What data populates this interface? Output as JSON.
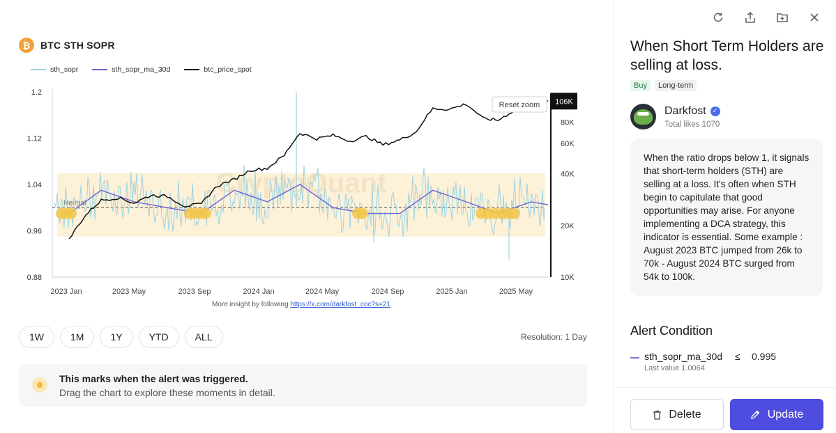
{
  "chart_header": {
    "icon": "bitcoin-icon",
    "title": "BTC STH SOPR"
  },
  "legend": [
    {
      "name": "sth_sopr",
      "color": "#9fd3e0"
    },
    {
      "name": "sth_sopr_ma_30d",
      "color": "#6c63d8"
    },
    {
      "name": "btc_price_spot",
      "color": "#111111"
    }
  ],
  "chart_data": {
    "type": "line",
    "x_ticks": [
      "2023 Jan",
      "2023 May",
      "2023 Sep",
      "2024 Jan",
      "2024 May",
      "2024 Sep",
      "2025 Jan",
      "2025 May"
    ],
    "left_axis": {
      "ticks": [
        "1.2",
        "1.12",
        "1.04",
        "0.96",
        "0.88"
      ],
      "range": [
        0.88,
        1.2
      ]
    },
    "right_axis": {
      "ticks": [
        "106K",
        "80K",
        "60K",
        "40K",
        "20K",
        "10K"
      ],
      "scale": "log"
    },
    "neutral_label": "Neutral",
    "neutral_value": 1.0,
    "band_range": [
      0.95,
      1.06
    ],
    "reset_label": "Reset zoom",
    "watermark": "CryptoQuant",
    "current_price_label": "106K",
    "series": [
      {
        "name": "btc_price_spot",
        "x": [
          "2023-01",
          "2023-02",
          "2023-03",
          "2023-04",
          "2023-05",
          "2023-06",
          "2023-07",
          "2023-08",
          "2023-09",
          "2023-10",
          "2023-11",
          "2023-12",
          "2024-01",
          "2024-02",
          "2024-03",
          "2024-04",
          "2024-05",
          "2024-06",
          "2024-07",
          "2024-08",
          "2024-09",
          "2024-10",
          "2024-11",
          "2024-12",
          "2025-01",
          "2025-02",
          "2025-03",
          "2025-04",
          "2025-05",
          "2025-06"
        ],
        "values": [
          16500,
          23000,
          28000,
          29000,
          27000,
          30000,
          29500,
          26000,
          26500,
          34000,
          37000,
          42000,
          43000,
          51000,
          69000,
          64000,
          67000,
          62000,
          66000,
          59000,
          63000,
          70000,
          96000,
          95000,
          102000,
          84000,
          82000,
          94000,
          104000,
          106000
        ]
      },
      {
        "name": "sth_sopr_ma_30d",
        "x": [
          "2023-01",
          "2023-03",
          "2023-05",
          "2023-07",
          "2023-09",
          "2023-11",
          "2024-01",
          "2024-03",
          "2024-05",
          "2024-07",
          "2024-09",
          "2024-11",
          "2025-01",
          "2025-03",
          "2025-05",
          "2025-06"
        ],
        "values": [
          0.99,
          1.03,
          1.01,
          1.0,
          0.99,
          1.03,
          1.01,
          1.04,
          1.0,
          0.99,
          0.99,
          1.03,
          1.01,
          0.99,
          1.01,
          1.005
        ]
      }
    ],
    "footer_text": "More insight by following",
    "footer_link": "https://x.com/darkfost_coc?s=21"
  },
  "time_buttons": [
    "1W",
    "1M",
    "1Y",
    "YTD",
    "ALL"
  ],
  "resolution": "Resolution: 1 Day",
  "notice": {
    "title": "This marks when the alert was triggered.",
    "subtitle": "Drag the chart to explore these moments in detail."
  },
  "top_icons": [
    "refresh-icon",
    "share-icon",
    "add-folder-icon",
    "close-icon"
  ],
  "alert": {
    "title": "When Short Term Holders are selling at loss.",
    "tags": [
      "Buy",
      "Long-term"
    ]
  },
  "author": {
    "name": "Darkfost",
    "likes": "Total likes 1070"
  },
  "description": "When the ratio drops below 1, it signals that short-term holders (STH) are selling at a loss. It's often when STH begin to capitulate that good opportunities may arise. For anyone implementing a DCA strategy, this indicator is essential. Some example : August 2023 BTC jumped from 26k to 70k - August 2024 BTC surged from 54k to 100k.",
  "condition": {
    "title": "Alert Condition",
    "metric": "sth_sopr_ma_30d",
    "operator": "≤",
    "value": "0.995",
    "last_value": "Last value 1.0064",
    "line_color": "#7b72d6"
  },
  "buttons": {
    "delete": "Delete",
    "update": "Update"
  },
  "colors": {
    "accent": "#4e4ddf",
    "band": "#fdf1d8",
    "marker": "#f3c64a"
  }
}
